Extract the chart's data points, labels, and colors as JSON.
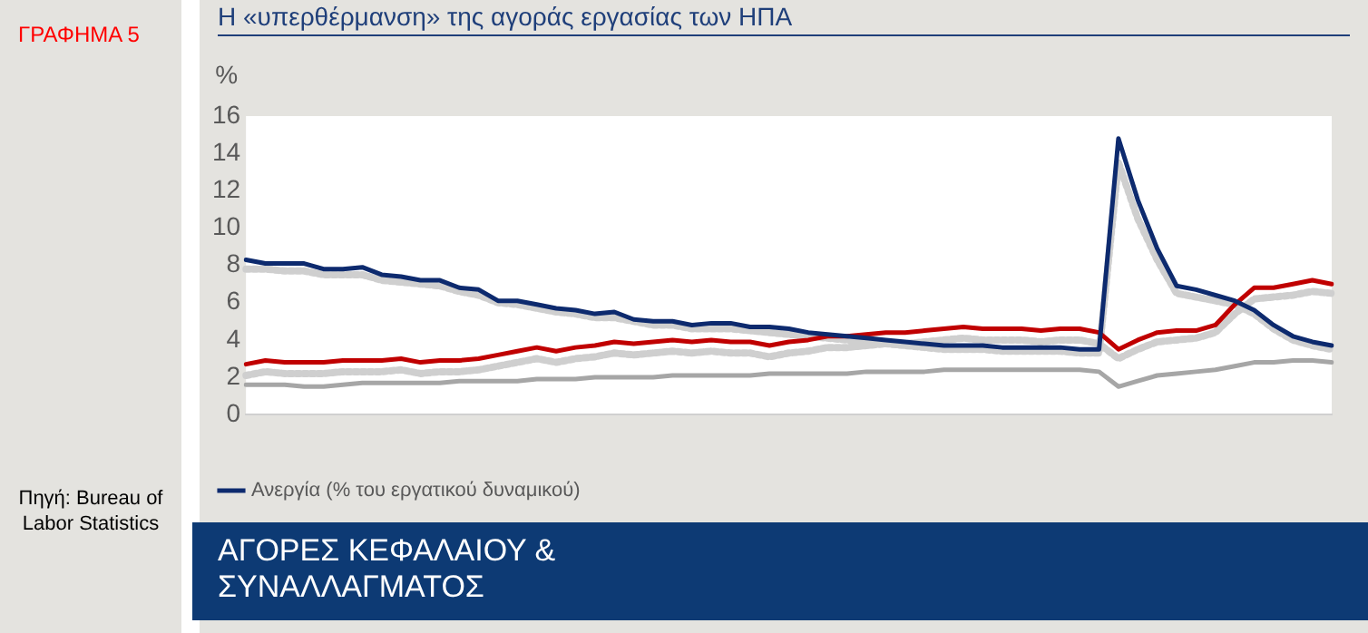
{
  "chart_data": {
    "type": "line",
    "title": "Η «υπερθέρμανση» της αγοράς εργασίας των ΗΠΑ",
    "ylabel": "%",
    "annotations": [
      "ΓΡΑΦΗΜΑ 5",
      "Πηγή: Bureau of Labor Statistics",
      "ΑΓΟΡΕΣ ΚΕΦΑΛΑΙΟΥ & ΣΥΝΑΛΛΑΓΜΑΤΟΣ"
    ],
    "categories": [
      null,
      null,
      null,
      null,
      null,
      null,
      null,
      null,
      null,
      null,
      null,
      null,
      null,
      null,
      null,
      null,
      null,
      null,
      null,
      null,
      null,
      null,
      null,
      null,
      null,
      null,
      null,
      null,
      null,
      null,
      null,
      null,
      null,
      null,
      null,
      null,
      null,
      null,
      null,
      null,
      null,
      null,
      null,
      null,
      null,
      null,
      null,
      null,
      null,
      null,
      null,
      null,
      null,
      null,
      null,
      null,
      null
    ],
    "ylim": [
      0,
      16
    ],
    "yticks": [
      0,
      2,
      4,
      6,
      8,
      10,
      12,
      14,
      16
    ],
    "grid": false,
    "legend": "bottom",
    "marker": "none",
    "series": [
      {
        "color": "#cfcfcf",
        "line_style": "dotted",
        "values": [
          7.8,
          7.8,
          7.7,
          7.7,
          7.5,
          7.5,
          7.5,
          7.2,
          7.1,
          7.0,
          6.9,
          6.6,
          6.4,
          6.0,
          5.9,
          5.7,
          5.5,
          5.4,
          5.2,
          5.2,
          5.0,
          4.8,
          4.8,
          4.6,
          4.6,
          4.6,
          4.5,
          4.4,
          4.3,
          4.2,
          4.1,
          4.0,
          3.9,
          3.8,
          3.7,
          3.6,
          3.5,
          3.5,
          3.5,
          3.4,
          3.4,
          3.4,
          3.4,
          3.3,
          3.3,
          13.5,
          10.5,
          8.3,
          6.5,
          6.3,
          6.1,
          5.9,
          5.4,
          4.6,
          4.0,
          3.7,
          3.5
        ]
      },
      {
        "color": "#cfcfcf",
        "line_style": "dotted",
        "values": [
          2.1,
          2.3,
          2.2,
          2.2,
          2.2,
          2.3,
          2.3,
          2.3,
          2.4,
          2.2,
          2.3,
          2.3,
          2.4,
          2.6,
          2.8,
          3.0,
          2.8,
          3.0,
          3.1,
          3.3,
          3.2,
          3.3,
          3.4,
          3.3,
          3.4,
          3.3,
          3.3,
          3.1,
          3.3,
          3.4,
          3.6,
          3.6,
          3.7,
          3.8,
          3.8,
          3.9,
          4.0,
          4.1,
          4.0,
          4.0,
          4.0,
          3.9,
          4.0,
          4.0,
          3.8,
          3.0,
          3.5,
          3.9,
          4.0,
          4.1,
          4.4,
          5.4,
          6.2,
          6.3,
          6.4,
          6.6,
          6.5
        ]
      },
      {
        "color": "#a6a6a6",
        "line_style": "solid",
        "values": [
          1.6,
          1.6,
          1.6,
          1.5,
          1.5,
          1.6,
          1.7,
          1.7,
          1.7,
          1.7,
          1.7,
          1.8,
          1.8,
          1.8,
          1.8,
          1.9,
          1.9,
          1.9,
          2.0,
          2.0,
          2.0,
          2.0,
          2.1,
          2.1,
          2.1,
          2.1,
          2.1,
          2.2,
          2.2,
          2.2,
          2.2,
          2.2,
          2.3,
          2.3,
          2.3,
          2.3,
          2.4,
          2.4,
          2.4,
          2.4,
          2.4,
          2.4,
          2.4,
          2.4,
          2.3,
          1.5,
          1.8,
          2.1,
          2.2,
          2.3,
          2.4,
          2.6,
          2.8,
          2.8,
          2.9,
          2.9,
          2.8
        ]
      },
      {
        "color": "#c00000",
        "line_style": "solid",
        "values": [
          2.7,
          2.9,
          2.8,
          2.8,
          2.8,
          2.9,
          2.9,
          2.9,
          3.0,
          2.8,
          2.9,
          2.9,
          3.0,
          3.2,
          3.4,
          3.6,
          3.4,
          3.6,
          3.7,
          3.9,
          3.8,
          3.9,
          4.0,
          3.9,
          4.0,
          3.9,
          3.9,
          3.7,
          3.9,
          4.0,
          4.2,
          4.2,
          4.3,
          4.4,
          4.4,
          4.5,
          4.6,
          4.7,
          4.6,
          4.6,
          4.6,
          4.5,
          4.6,
          4.6,
          4.4,
          3.5,
          4.0,
          4.4,
          4.5,
          4.5,
          4.8,
          5.9,
          6.8,
          6.8,
          7.0,
          7.2,
          7.0
        ]
      },
      {
        "name": "Ανεργία (% του εργατικού δυναμικού)",
        "color": "#0d2a6e",
        "line_style": "solid",
        "values": [
          8.3,
          8.1,
          8.1,
          8.1,
          7.8,
          7.8,
          7.9,
          7.5,
          7.4,
          7.2,
          7.2,
          6.8,
          6.7,
          6.1,
          6.1,
          5.9,
          5.7,
          5.6,
          5.4,
          5.5,
          5.1,
          5.0,
          5.0,
          4.8,
          4.9,
          4.9,
          4.7,
          4.7,
          4.6,
          4.4,
          4.3,
          4.2,
          4.1,
          4.0,
          3.9,
          3.8,
          3.7,
          3.7,
          3.7,
          3.6,
          3.6,
          3.6,
          3.6,
          3.5,
          3.5,
          14.8,
          11.5,
          8.9,
          6.9,
          6.7,
          6.4,
          6.1,
          5.6,
          4.8,
          4.2,
          3.9,
          3.7
        ]
      }
    ]
  }
}
